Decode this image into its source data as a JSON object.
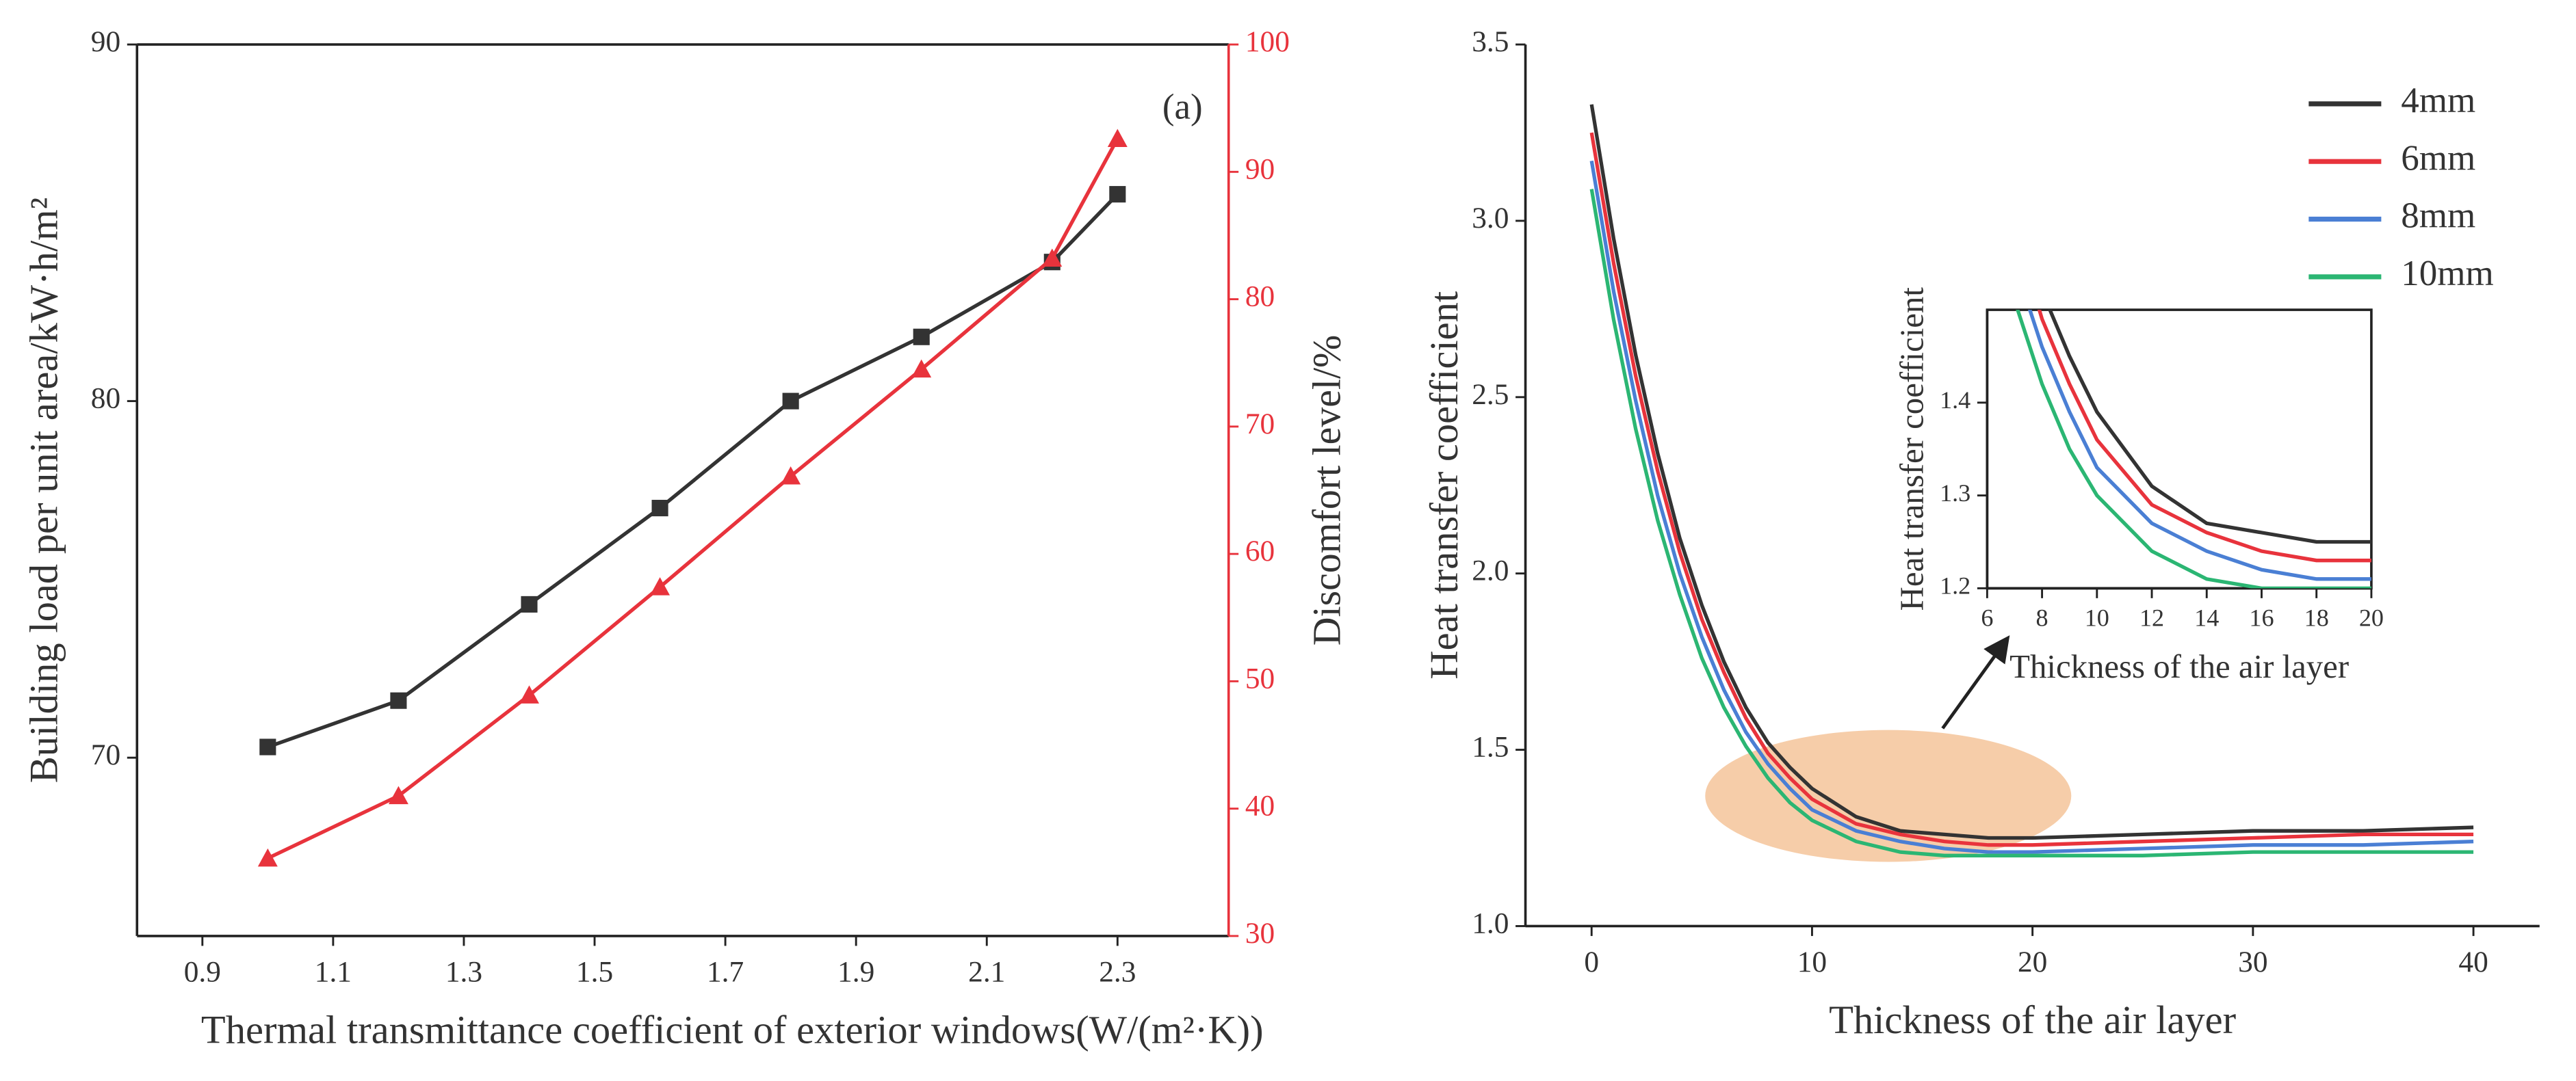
{
  "chart_data": [
    {
      "type": "line",
      "annotation": "(a)",
      "xlabel": "Thermal transmittance coefficient of exterior windows(W/(m²·K))",
      "ylabel": "Building load per unit area/kW·h/m²",
      "y2label": "Discomfort level/%",
      "x": [
        1.0,
        1.2,
        1.4,
        1.6,
        1.8,
        2.0,
        2.2,
        2.3
      ],
      "series": [
        {
          "color": "#333333",
          "marker": "square",
          "values": [
            70.3,
            71.6,
            74.3,
            77.0,
            80.0,
            81.8,
            83.9,
            85.8
          ]
        },
        {
          "color": "#e8333c",
          "marker": "triangle",
          "axis": "y2",
          "values": [
            36.1,
            41.0,
            48.9,
            57.4,
            66.1,
            74.5,
            83.2,
            92.6
          ]
        }
      ],
      "xlim": [
        0.8,
        2.47
      ],
      "xticks": [
        0.9,
        1.1,
        1.3,
        1.5,
        1.7,
        1.9,
        2.1,
        2.3
      ],
      "ylim": [
        65,
        90
      ],
      "yticks": [
        70,
        80,
        90
      ],
      "y2lim": [
        30,
        100
      ],
      "y2ticks": [
        30,
        40,
        50,
        60,
        70,
        80,
        90,
        100
      ]
    },
    {
      "type": "line",
      "xlabel": "Thickness of the air layer",
      "ylabel": "Heat transfer coefficient",
      "legend": "upper right",
      "x": [
        0,
        1,
        2,
        3,
        4,
        5,
        6,
        7,
        8,
        9,
        10,
        12,
        14,
        16,
        18,
        20,
        25,
        30,
        35,
        40
      ],
      "series": [
        {
          "name": "4mm",
          "color": "#333333",
          "values": [
            3.33,
            2.95,
            2.62,
            2.34,
            2.1,
            1.91,
            1.75,
            1.62,
            1.52,
            1.45,
            1.39,
            1.31,
            1.27,
            1.26,
            1.25,
            1.25,
            1.26,
            1.27,
            1.27,
            1.28
          ]
        },
        {
          "name": "6mm",
          "color": "#e8333c",
          "values": [
            3.25,
            2.88,
            2.56,
            2.29,
            2.06,
            1.87,
            1.72,
            1.59,
            1.49,
            1.42,
            1.36,
            1.29,
            1.26,
            1.24,
            1.23,
            1.23,
            1.24,
            1.25,
            1.26,
            1.26
          ]
        },
        {
          "name": "8mm",
          "color": "#4a7fd4",
          "values": [
            3.17,
            2.8,
            2.49,
            2.22,
            2.0,
            1.82,
            1.67,
            1.55,
            1.46,
            1.39,
            1.33,
            1.27,
            1.24,
            1.22,
            1.21,
            1.21,
            1.22,
            1.23,
            1.23,
            1.24
          ]
        },
        {
          "name": "10mm",
          "color": "#2bb673",
          "values": [
            3.09,
            2.72,
            2.41,
            2.15,
            1.94,
            1.76,
            1.62,
            1.51,
            1.42,
            1.35,
            1.3,
            1.24,
            1.21,
            1.2,
            1.2,
            1.2,
            1.2,
            1.21,
            1.21,
            1.21
          ]
        }
      ],
      "xlim": [
        -3,
        43
      ],
      "xticks": [
        0,
        10,
        20,
        30,
        40
      ],
      "ylim": [
        1.0,
        3.5
      ],
      "yticks": [
        {
          "value": 1,
          "label": "1.0"
        },
        1.5,
        {
          "value": 2,
          "label": "2.0"
        },
        2.5,
        {
          "value": 3,
          "label": "3.0"
        },
        3.5
      ],
      "inset": {
        "xlabel": "Thickness of the air layer",
        "ylabel": "Heat transfer coefficient",
        "xlim": [
          6,
          20
        ],
        "xticks": [
          6,
          8,
          10,
          12,
          14,
          16,
          18,
          20
        ],
        "ylim": [
          1.2,
          1.5
        ],
        "yticks": [
          1.2,
          1.3,
          1.4
        ]
      }
    }
  ]
}
